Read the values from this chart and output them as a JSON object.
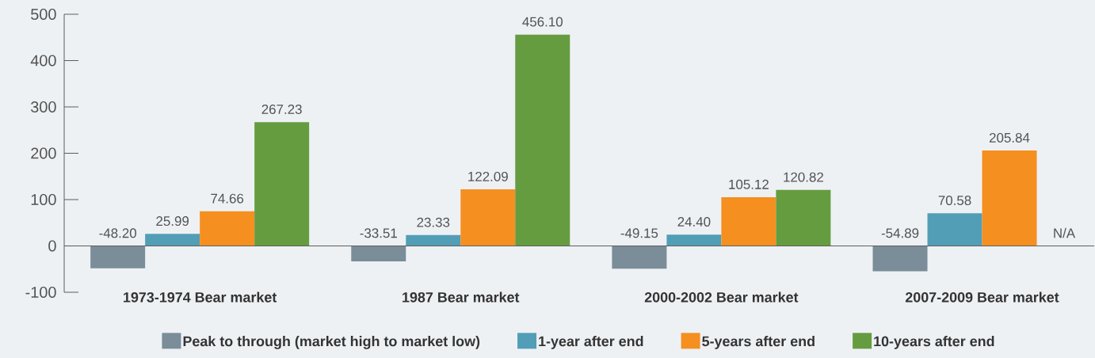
{
  "chart_data": {
    "type": "bar",
    "categories": [
      "1973-1974 Bear market",
      "1987 Bear market",
      "2000-2002 Bear market",
      "2007-2009 Bear market"
    ],
    "series": [
      {
        "name": "Peak to through (market high to market low)",
        "color": "#7a8d98",
        "values": [
          -48.2,
          -33.51,
          -49.15,
          -54.89
        ],
        "value_labels": [
          "-48.20",
          "-33.51",
          "-49.15",
          "-54.89"
        ]
      },
      {
        "name": "1-year after end",
        "color": "#529eb6",
        "values": [
          25.99,
          23.33,
          24.4,
          70.58
        ],
        "value_labels": [
          "25.99",
          "23.33",
          "24.40",
          "70.58"
        ]
      },
      {
        "name": "5-years after end",
        "color": "#f58f20",
        "values": [
          74.66,
          122.09,
          105.12,
          205.84
        ],
        "value_labels": [
          "74.66",
          "122.09",
          "105.12",
          "205.84"
        ]
      },
      {
        "name": "10-years after end",
        "color": "#659c40",
        "values": [
          267.23,
          456.1,
          120.82,
          null
        ],
        "value_labels": [
          "267.23",
          "456.10",
          "120.82",
          "N/A"
        ]
      }
    ],
    "ylim": [
      -100,
      500
    ],
    "yticks": [
      -100,
      0,
      100,
      200,
      300,
      400,
      500
    ],
    "legend": "bottom"
  }
}
